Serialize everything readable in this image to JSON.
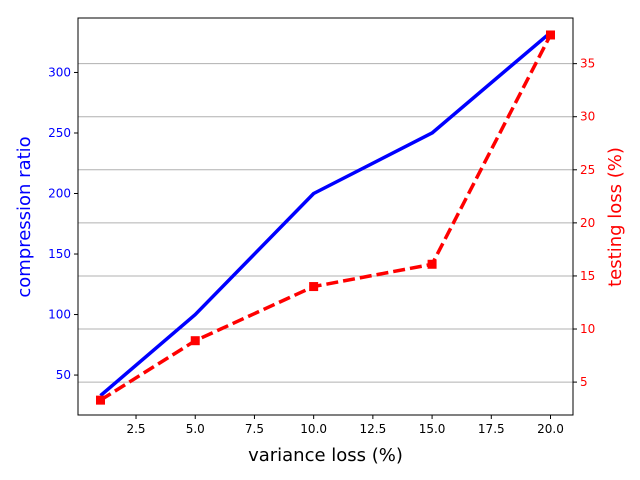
{
  "chart_data": {
    "type": "line",
    "xlabel": "variance loss (%)",
    "ylabel_left": "compression ratio",
    "ylabel_right": "testing loss (%)",
    "xlim": [
      0.05,
      20.95
    ],
    "ylim_left": [
      17,
      345
    ],
    "ylim_right": [
      1.9,
      39.3
    ],
    "x_ticks": [
      2.5,
      5.0,
      7.5,
      10.0,
      12.5,
      15.0,
      17.5,
      20.0
    ],
    "x_tick_labels": [
      "2.5",
      "5.0",
      "7.5",
      "10.0",
      "12.5",
      "15.0",
      "17.5",
      "20.0"
    ],
    "y_left_ticks": [
      50,
      100,
      150,
      200,
      250,
      300
    ],
    "y_left_tick_labels": [
      "50",
      "100",
      "150",
      "200",
      "250",
      "300"
    ],
    "y_right_ticks": [
      5,
      10,
      15,
      20,
      25,
      30,
      35
    ],
    "y_right_tick_labels": [
      "5",
      "10",
      "15",
      "20",
      "25",
      "30",
      "35"
    ],
    "grid": "horizontal lines at right-axis ticks",
    "x": [
      1,
      5,
      10,
      15,
      20
    ],
    "series": [
      {
        "axis": "left",
        "color": "#0000ff",
        "style": "solid",
        "marker": "none",
        "values": [
          33,
          100,
          200,
          250,
          333
        ]
      },
      {
        "axis": "right",
        "color": "#ff0000",
        "style": "dashed",
        "marker": "square",
        "values": [
          3.3,
          8.9,
          14.0,
          16.1,
          37.7
        ]
      }
    ],
    "colors": {
      "left_axis": "#0000ff",
      "right_axis": "#ff0000",
      "grid": "#b0b0b0"
    }
  }
}
